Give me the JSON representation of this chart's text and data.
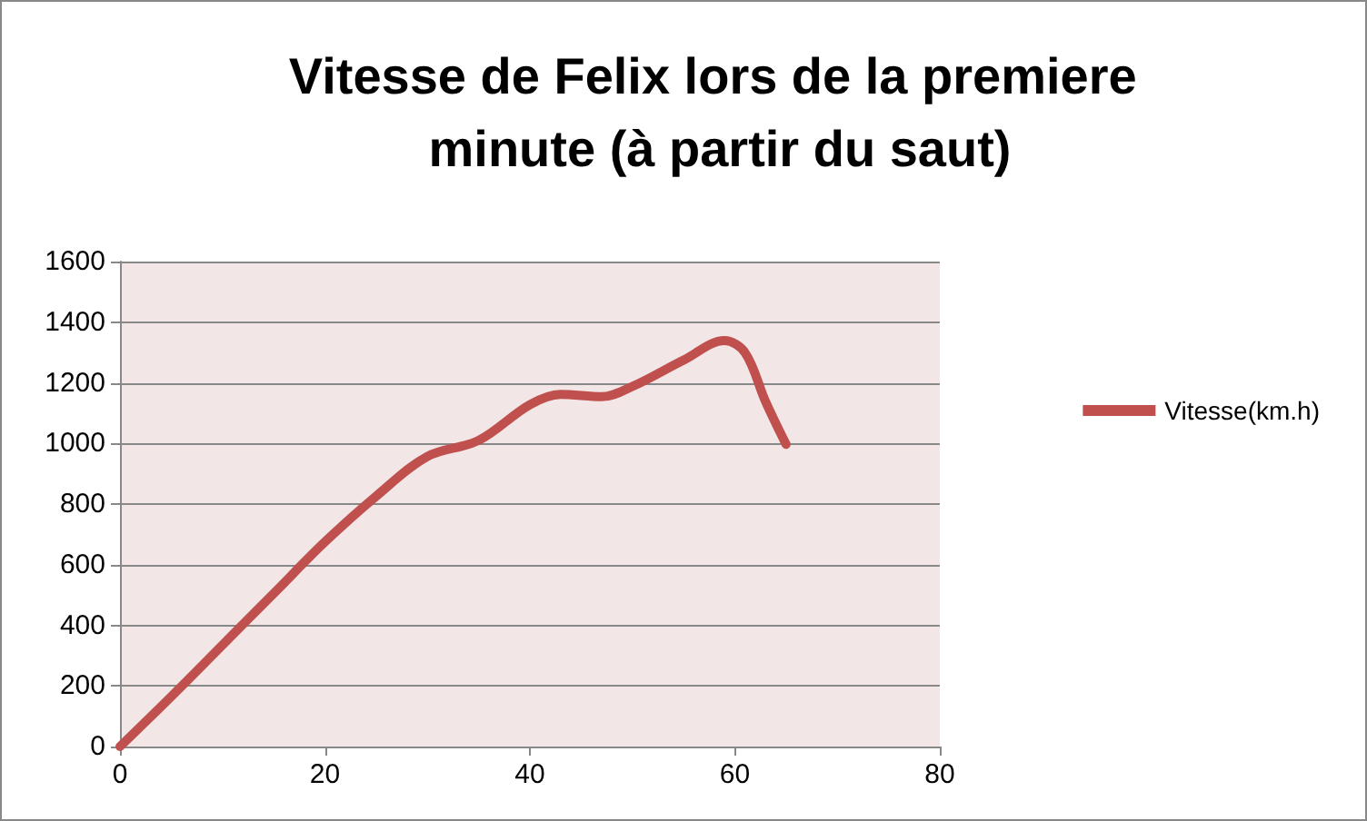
{
  "chart_data": {
    "type": "line",
    "title": "Vitesse de Felix lors de la premiere minute (à partir du saut)",
    "x": [
      0,
      5,
      10,
      15,
      20,
      25,
      30,
      35,
      40,
      43,
      47,
      50,
      55,
      59,
      61,
      63,
      65
    ],
    "series": [
      {
        "name": "Vitesse(km.h)",
        "color": "#c0504d",
        "values": [
          0,
          165,
          335,
          505,
          675,
          826,
          957,
          1010,
          1128,
          1162,
          1154,
          1188,
          1275,
          1339,
          1299,
          1138,
          997
        ]
      }
    ],
    "xlim": [
      0,
      80
    ],
    "xticks": [
      0,
      20,
      40,
      60,
      80
    ],
    "ylim": [
      0,
      1600
    ],
    "yticks": [
      0,
      200,
      400,
      600,
      800,
      1000,
      1200,
      1400,
      1600
    ],
    "grid": "y",
    "legend": "right",
    "marker": "none",
    "line_style": "solid"
  }
}
